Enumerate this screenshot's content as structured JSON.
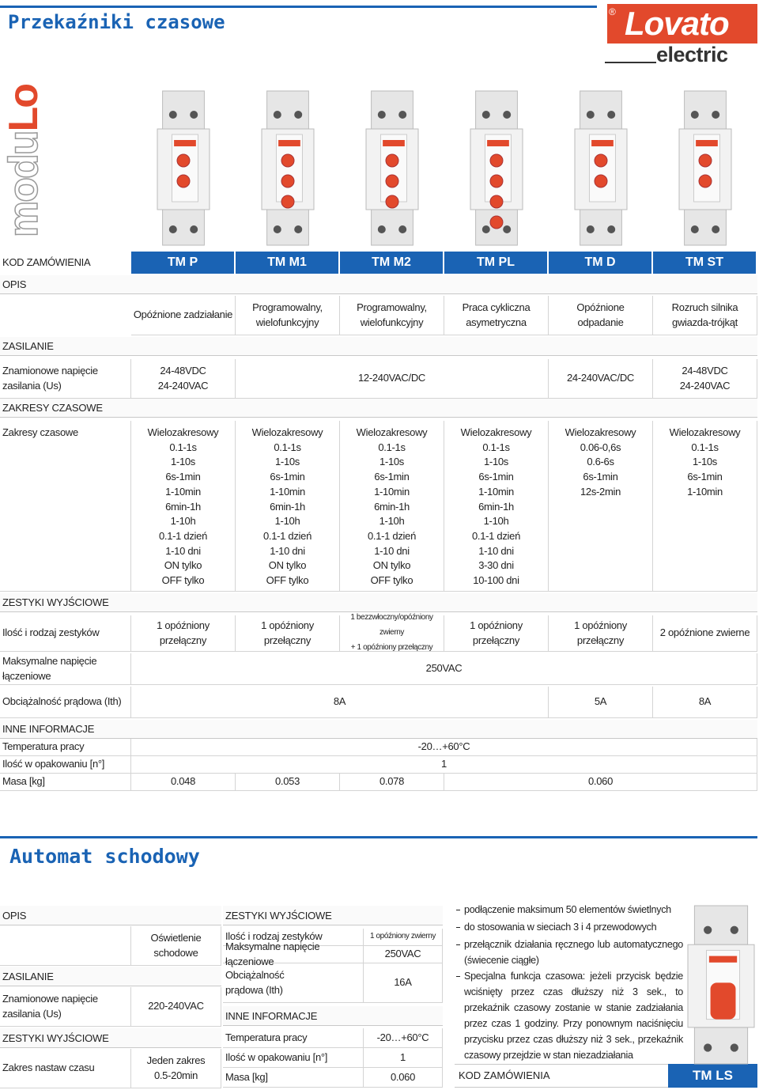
{
  "header": {
    "title": "Przekaźniki czasowe",
    "logo": "Lovato",
    "logo_mark": "®",
    "logo_sub": "electric",
    "brand_parts": [
      "modu",
      "Lo"
    ]
  },
  "table": {
    "order_label": "KOD ZAMÓWIENIA",
    "models": [
      "TM P",
      "TM M1",
      "TM M2",
      "TM PL",
      "TM D",
      "TM ST"
    ],
    "sections": [
      {
        "title": "OPIS",
        "rows": [
          {
            "cells": [
              [
                "Opóźnione zadziałanie"
              ],
              [
                "Programowalny,",
                "wielofunkcyjny"
              ],
              [
                "Programowalny,",
                "wielofunkcyjny"
              ],
              [
                "Praca cykliczna",
                "asymetryczna"
              ],
              [
                "Opóźnione",
                "odpadanie"
              ],
              [
                "Rozruch silnika",
                "gwiazda-trójkąt"
              ]
            ]
          }
        ]
      },
      {
        "title": "ZASILANIE",
        "rows": [
          {
            "label": [
              "Znamionowe napięcie",
              "zasilania (Us)"
            ],
            "cells": [
              [
                "24-48VDC",
                "24-240VAC"
              ],
              [
                "12-240VAC/DC"
              ],
              [
                "24-240VAC/DC"
              ],
              [
                "24-48VDC",
                "24-240VAC"
              ]
            ]
          }
        ]
      },
      {
        "title": "ZAKRESY CZASOWE",
        "rows": [
          {
            "label": [
              "Zakresy czasowe"
            ],
            "cells": [
              [
                "Wielozakresowy",
                "0.1-1s",
                "1-10s",
                "6s-1min",
                "1-10min",
                "6min-1h",
                "1-10h",
                "0.1-1 dzień",
                "1-10 dni",
                "ON tylko",
                "OFF tylko"
              ],
              [
                "Wielozakresowy",
                "0.1-1s",
                "1-10s",
                "6s-1min",
                "1-10min",
                "6min-1h",
                "1-10h",
                "0.1-1 dzień",
                "1-10 dni",
                "ON tylko",
                "OFF tylko"
              ],
              [
                "Wielozakresowy",
                "0.1-1s",
                "1-10s",
                "6s-1min",
                "1-10min",
                "6min-1h",
                "1-10h",
                "0.1-1 dzień",
                "1-10 dni",
                "ON tylko",
                "OFF tylko"
              ],
              [
                "Wielozakresowy",
                "0.1-1s",
                "1-10s",
                "6s-1min",
                "1-10min",
                "6min-1h",
                "1-10h",
                "0.1-1 dzień",
                "1-10 dni",
                "3-30 dni",
                "10-100 dni"
              ],
              [
                "Wielozakresowy",
                "0.06-0,6s",
                "0.6-6s",
                "6s-1min",
                "12s-2min"
              ],
              [
                "Wielozakresowy",
                "0.1-1s",
                "1-10s",
                "6s-1min",
                "1-10min"
              ]
            ]
          }
        ]
      },
      {
        "title": "ZESTYKI WYJŚCIOWE",
        "rows": [
          {
            "label": [
              "Ilość i rodzaj zestyków"
            ],
            "cells": [
              [
                "1 opóźniony",
                "przełączny"
              ],
              [
                "1 opóźniony",
                "przełączny"
              ],
              [
                "1 bezzwłoczny/opóźniony zwierny",
                "+ 1 opóźniony przełączny"
              ],
              [
                "1 opóźniony",
                "przełączny"
              ],
              [
                "1 opóźniony",
                "przełączny"
              ],
              [
                "2 opóźnione zwierne"
              ]
            ]
          },
          {
            "label": [
              "Maksymalne napięcie",
              "łączeniowe"
            ],
            "cells": [
              [
                "250VAC"
              ]
            ]
          },
          {
            "label": [
              "Obciążalność prądowa (Ith)"
            ],
            "cells": [
              [
                "8A"
              ],
              [
                "5A"
              ],
              [
                "8A"
              ]
            ]
          }
        ]
      },
      {
        "title": "INNE INFORMACJE",
        "rows": [
          {
            "label": [
              "Temperatura pracy"
            ],
            "cells": [
              [
                "-20…+60°C"
              ]
            ]
          },
          {
            "label": [
              "Ilość w opakowaniu [n°]"
            ],
            "cells": [
              [
                "1"
              ]
            ]
          },
          {
            "label": [
              "Masa [kg]"
            ],
            "cells": [
              [
                "0.048"
              ],
              [
                "0.053"
              ],
              [
                "0.078"
              ],
              [
                "0.060"
              ]
            ]
          }
        ]
      }
    ]
  },
  "stairs": {
    "title": "Automat schodowy",
    "left": [
      {
        "title": "OPIS",
        "rows": [
          {
            "label": [],
            "value": [
              "Oświetlenie",
              "schodowe"
            ]
          }
        ]
      },
      {
        "title": "ZASILANIE",
        "rows": [
          {
            "label": [
              "Znamionowe napięcie",
              "zasilania (Us)"
            ],
            "value": [
              "220-240VAC"
            ]
          }
        ]
      },
      {
        "title": "ZESTYKI WYJŚCIOWE",
        "rows": [
          {
            "label": [
              "Zakres nastaw czasu"
            ],
            "value": [
              "Jeden zakres",
              "0.5-20min"
            ]
          }
        ]
      }
    ],
    "middle": [
      {
        "title": "ZESTYKI WYJŚCIOWE",
        "rows": [
          {
            "label": [
              "Ilość i rodzaj zestyków"
            ],
            "value": [
              "1 opóźniony zwierny"
            ]
          },
          {
            "label": [
              "Maksymalne napięcie łączeniowe"
            ],
            "value": [
              "250VAC"
            ]
          },
          {
            "label": [
              "Obciążalność",
              "prądowa (Ith)"
            ],
            "value": [
              "16A"
            ]
          }
        ]
      },
      {
        "title": "INNE INFORMACJE",
        "rows": [
          {
            "label": [
              "Temperatura pracy"
            ],
            "value": [
              "-20…+60°C"
            ]
          },
          {
            "label": [
              "Ilość w opakowaniu [n°]"
            ],
            "value": [
              "1"
            ]
          },
          {
            "label": [
              "Masa [kg]"
            ],
            "value": [
              "0.060"
            ]
          }
        ]
      }
    ],
    "notes": [
      "podłączenie maksimum 50 elementów świetlnych",
      "do stosowania w sieciach 3 i 4 przewodowych",
      "przełącznik działania ręcznego lub automatycznego (świecenie ciągłe)",
      "Specjalna funkcja czasowa: jeżeli przycisk będzie wciśnięty przez czas dłuższy niż 3 sek., to przekaźnik czasowy zostanie w stanie zadziałania przez czas 1 godziny. Przy ponownym naciśnięciu przycisku przez czas dłuższy niż 3 sek., przekaźnik czasowy przejdzie w stan niezadziałania"
    ],
    "order_label": "KOD ZAMÓWIENIA",
    "model": "TM LS"
  }
}
